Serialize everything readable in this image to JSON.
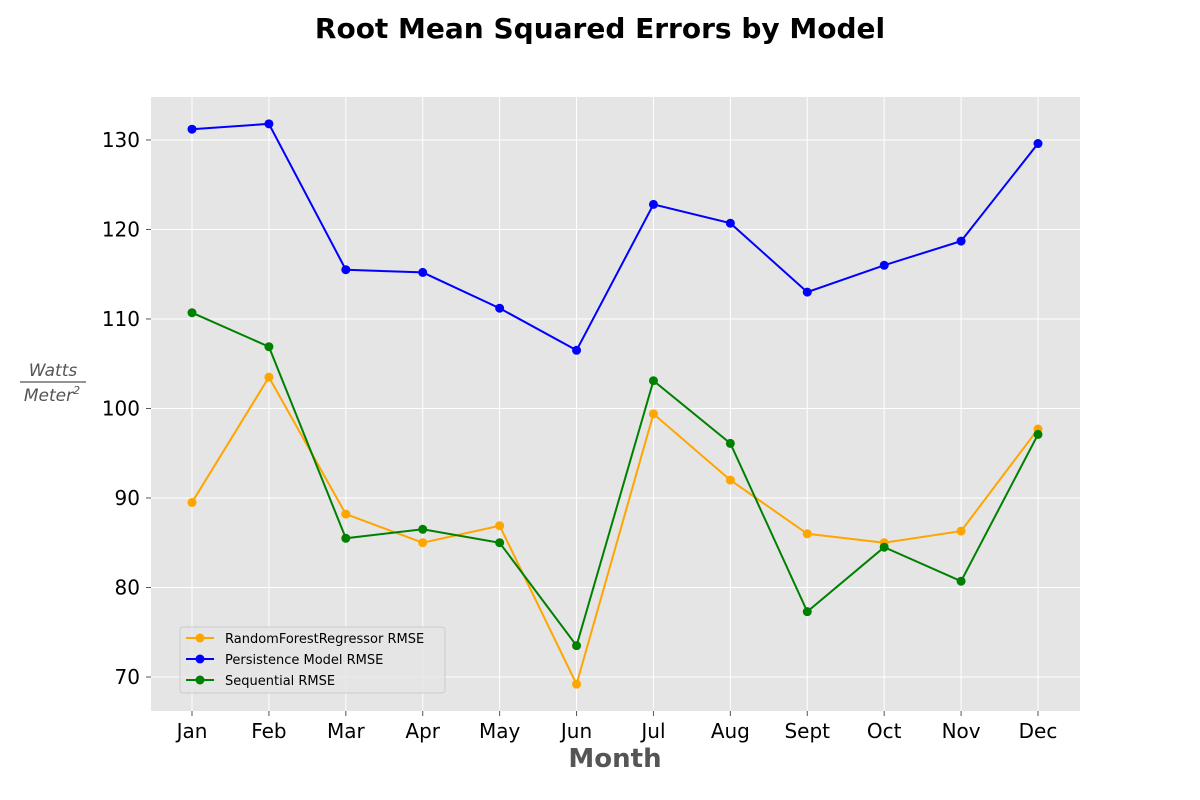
{
  "chart_data": {
    "type": "line",
    "title": "Root Mean Squared Errors by Model",
    "xlabel": "Month",
    "ylabel": {
      "numerator": "Watts",
      "denominator": "Meter",
      "denominator_exponent": "2"
    },
    "categories": [
      "Jan",
      "Feb",
      "Mar",
      "Apr",
      "May",
      "Jun",
      "Jul",
      "Aug",
      "Sept",
      "Oct",
      "Nov",
      "Dec"
    ],
    "ylim": [
      66.2,
      134.8
    ],
    "yticks": [
      70,
      80,
      90,
      100,
      110,
      120,
      130
    ],
    "grid": true,
    "legend_position": "lower-left",
    "background_color": "#e5e5e5",
    "grid_color": "#ffffff",
    "series": [
      {
        "name": "RandomForestRegressor RMSE",
        "color": "#ffa500",
        "values": [
          89.5,
          103.5,
          88.2,
          85.0,
          86.9,
          69.2,
          99.4,
          92.0,
          86.0,
          85.0,
          86.3,
          97.7
        ]
      },
      {
        "name": "Persistence Model RMSE",
        "color": "#0000ff",
        "values": [
          131.2,
          131.8,
          115.5,
          115.2,
          111.2,
          106.5,
          122.8,
          120.7,
          113.0,
          116.0,
          118.7,
          129.6
        ]
      },
      {
        "name": "Sequential RMSE",
        "color": "#008000",
        "values": [
          110.7,
          106.9,
          85.5,
          86.5,
          85.0,
          73.5,
          103.1,
          96.1,
          77.3,
          84.5,
          80.7,
          97.1
        ]
      }
    ]
  }
}
